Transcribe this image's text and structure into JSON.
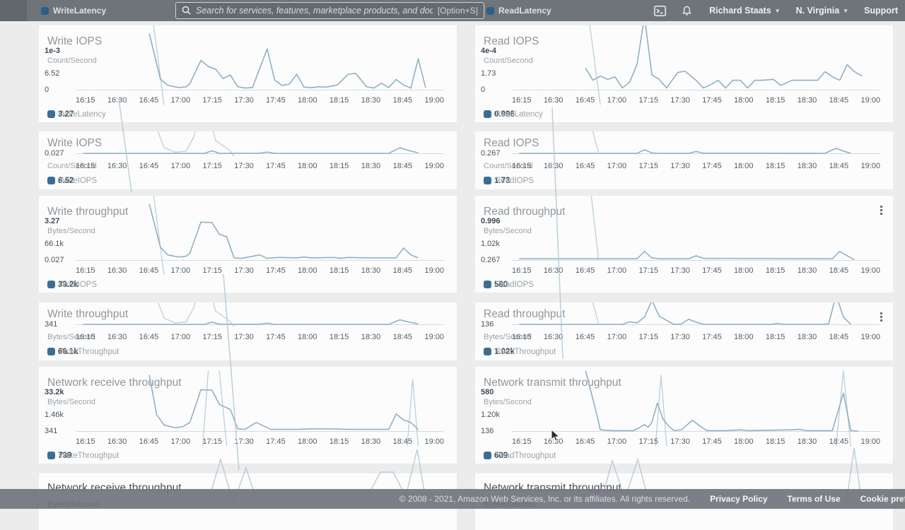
{
  "header": {
    "ghost_legend_left": "WriteLatency",
    "ghost_legend_right": "ReadLatency",
    "search": {
      "placeholder": "Search for services, features, marketplace products, and docs",
      "shortcut": "[Option+S]"
    },
    "user": "Richard Staats",
    "region": "N. Virginia",
    "support": "Support"
  },
  "x_ticks": [
    "16:15",
    "16:30",
    "16:45",
    "17:00",
    "17:15",
    "17:30",
    "17:45",
    "18:00",
    "18:15",
    "18:30",
    "18:45",
    "19:00"
  ],
  "colors": {
    "accent": "#3c6e94",
    "line": "#8fb1c4",
    "ghost_line": "#a9c6d7",
    "header_bg": "#6e747a",
    "card_bg": "#fcfcfc"
  },
  "panels": [
    {
      "row": 1,
      "col": "left",
      "variant": "full",
      "title": "Write IOPS",
      "y_top": "1e-3",
      "unit": "Count/Second",
      "y_mid": "6.52",
      "y_base": "0",
      "legend_ghost": "3.27",
      "legend_label": "WriteLatency",
      "kebab": false,
      "series": "20,-30 23,75 25,90 28,95 30,93 31,86 34,32 36,46 38,52 40,74 42,66 44,93 46,96 48,95 52,5 54,77 56,90 58,87 60,64 62,94 64,95 66,93 68,94 71,89 74,64 76,62 79,93 81,96 83,85 85,95 87,76 89,89 91,96 93,28 95,95",
      "ghost": [
        "21,-60 24,135"
      ]
    },
    {
      "row": 1,
      "col": "right",
      "variant": "full",
      "title": "Read IOPS",
      "y_top": "4e-4",
      "unit": "Count/Second",
      "y_mid": "1.73",
      "y_base": "0",
      "legend_ghost": "0.996",
      "legend_label": "ReadLatency",
      "kebab": false,
      "series": "20,50 22,78 24,68 26,76 28,70 30,96 32,82 34,40 36,-70 38,65 40,76 42,96 45,60 47,57 50,78 52,96 54,88 56,78 58,96 60,78 62,78 64,96 66,78 68,78 71,76 73,90 76,78 83,78 85,58 87,70 89,78 91,42 93,58 95,68",
      "ghost": [
        "21,-60 24,135"
      ]
    },
    {
      "row": 2,
      "col": "left",
      "variant": "short",
      "title": "Write IOPS",
      "y_base": "0.027",
      "unit": "Count/Second",
      "legend_ghost": "6.52",
      "legend_label": "WriteIOPS",
      "kebab": false,
      "series": "2,100 35,100 37,86 39,100 50,99 52,93 54,100 85,100 88,70 91,88 93,97",
      "ghost": [
        "21,-90 24,68 27,94 30,88 32,14 33.5,-90",
        "36.5,-90 38,30 40,58 42,88 43,115"
      ]
    },
    {
      "row": 2,
      "col": "right",
      "variant": "short",
      "title": "Read IOPS",
      "y_base": "0.267",
      "unit": "Count/Second",
      "legend_ghost": "1.73",
      "legend_label": "ReadIOPS",
      "kebab": false,
      "series": "2,100 34,100 36,80 38,98 40,100 48,100 50,90 52,99 85,100 88,72 90,88 92,100",
      "ghost": [
        "21,-90 23.5,95"
      ]
    },
    {
      "row": 3,
      "col": "left",
      "variant": "full",
      "title": "Write throughput",
      "y_top": "3.27",
      "unit": "Bytes/Second",
      "y_mid": "66.1k",
      "y_base": "0.027",
      "legend_ghost": "33.2k",
      "legend_label": "WriteIOPS",
      "kebab": false,
      "series": "20,-30 23,70 25,88 28,93 30,91 31,84 34,12 37,13 39,40 41,46 43,95 45,96 50,88 52,96 55,94 60,95 62,93 64,95 70,94 72,96 74,94 80,95 87,95 89,72 91,88 93,95",
      "ghost": [
        "21,-60 24,135"
      ]
    },
    {
      "row": 3,
      "col": "right",
      "variant": "full",
      "title": "Read throughput",
      "y_top": "0.996",
      "unit": "Bytes/Second",
      "y_mid": "1.02k",
      "y_base": "0.267",
      "legend_ghost": "580",
      "legend_label": "ReadIOPS",
      "kebab": true,
      "series": "2,97 20,97 34,97 36,80 38,95 40,97 48,97 50,90 52,96 84,97 87,97 89,80 91,90 93,99",
      "ghost": [
        "21,-90 23.5,96"
      ]
    },
    {
      "row": 4,
      "col": "left",
      "variant": "short",
      "title": "Write throughput",
      "y_base": "341",
      "unit": "Bytes/Second",
      "legend_ghost": "66.1k",
      "legend_label": "WriteThroughput",
      "kebab": false,
      "series": "2,100 35,100 37,88 39,99 50,99 52,94 54,100 85,100 88,75 91,90 93,98",
      "ghost": [
        "21,-90 24,66 27,92 30,86 32,10 33.5,-90",
        "36.5,-90 38,28 40,55 42,86 43,112"
      ]
    },
    {
      "row": 4,
      "col": "right",
      "variant": "short",
      "title": "Read throughput",
      "y_base": "136",
      "unit": "Bytes/Second",
      "legend_ghost": "1.02k",
      "legend_label": "ReadThroughput",
      "kebab": true,
      "series": "2,100 30,100 32,86 34,92 36,60 38,-30 40,55 42,78 44,100 46,98 48,72 50,88 52,100 70,100 72,96 74,100 84,100 86,98 88,-60 90,60 92,100",
      "ghost": [
        "21,-90 23.5,95"
      ]
    },
    {
      "row": 5,
      "col": "left",
      "variant": "full",
      "title": "Network receive throughput",
      "y_top": "33.2k",
      "unit": "Bytes/Second",
      "y_mid": "1.46k",
      "y_base": "341",
      "legend_ghost": "739",
      "legend_label": "WriteThroughput",
      "kebab": false,
      "series": "20,-30 22,62 24,86 27,92 29,90 31,80 33,30 34,4 37,5 39,38 41,46 42,50 44,95 46,96 49,80 51,88 53,96 60,96 64,95 70,95 74,96 80,96 85,96 87,60 89,74 91,80 93,97",
      "ghost": [
        "34.5,135 36,-40",
        "39,-40 41,135",
        "90,135 91.5,-20 93,135"
      ]
    },
    {
      "row": 5,
      "col": "right",
      "variant": "full",
      "title": "Network transmit throughput",
      "y_top": "580",
      "unit": "Bytes/Second",
      "y_mid": "1.20k",
      "y_base": "136",
      "legend_ghost": "609",
      "legend_label": "ReadThroughput",
      "kebab": false,
      "series": "20,-40 23,60 24,97 27,99 30,99 33,99 35,90 36,85 37,91 38,80 39.5,35 41,72 42.5,88 44,99 46,97 49,75 51,88 53,99 58,99 62,97 64,99 76,97 78,96 80,99 87,99 88.5,55 90,12 92,99 94,100",
      "ghost": [
        "39,135 40.5,-30 42,135",
        "88,135 90,-40 92,135"
      ]
    },
    {
      "row": 6,
      "col": "left",
      "variant": "stub",
      "title": "Network receive throughput",
      "unit": "Bytes/Second",
      "kebab": false
    },
    {
      "row": 6,
      "col": "right",
      "variant": "stub",
      "title": "Network transmit throughput",
      "unit": "Bytes/Second",
      "kebab": false
    }
  ],
  "overlay_ghost_lines": [
    "168,140 186,272",
    "781,152 796,508",
    "316,388 338,665",
    "292,718 312,650 330,712 348,662 366,718",
    "520,702 538,668 556,668 574,702 590,636 604,718",
    "848,718 866,652 884,706 902,650 920,718",
    "1196,718 1208,634 1220,718"
  ],
  "footer": {
    "copyright": "© 2008 - 2021, Amazon Web Services, Inc. or its affiliates. All rights reserved.",
    "links": [
      "Privacy Policy",
      "Terms of Use",
      "Cookie prefer"
    ]
  }
}
